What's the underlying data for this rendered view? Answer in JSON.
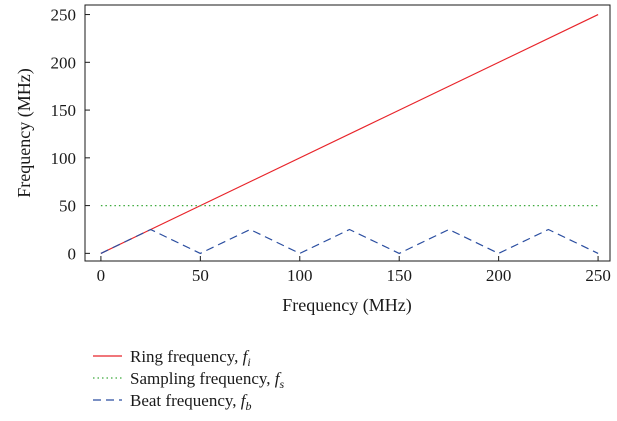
{
  "chart_data": {
    "type": "line",
    "title": "",
    "xlabel": "Frequency (MHz)",
    "ylabel": "Frequency (MHz)",
    "xlim": [
      -8,
      256
    ],
    "ylim": [
      -8,
      260
    ],
    "xticks": [
      0,
      50,
      100,
      150,
      200,
      250
    ],
    "yticks": [
      0,
      50,
      100,
      150,
      200,
      250
    ],
    "grid": false,
    "legend_position": "bottom-left, below plot",
    "series": [
      {
        "name": "Ring frequency,",
        "symbol": "f",
        "subscript": "i",
        "color": "#e8242a",
        "style": "solid",
        "x": [
          0,
          250
        ],
        "y": [
          0,
          250
        ]
      },
      {
        "name": "Sampling frequency,",
        "symbol": "f",
        "subscript": "s",
        "color": "#3daa3d",
        "style": "dotted",
        "x": [
          0,
          250
        ],
        "y": [
          50,
          50
        ]
      },
      {
        "name": "Beat frequency,",
        "symbol": "f",
        "subscript": "b",
        "color": "#2b4ea0",
        "style": "dashed",
        "x": [
          0,
          25,
          50,
          75,
          100,
          125,
          150,
          175,
          200,
          225,
          250
        ],
        "y": [
          0,
          25,
          0,
          25,
          0,
          25,
          0,
          25,
          0,
          25,
          0
        ]
      }
    ]
  }
}
